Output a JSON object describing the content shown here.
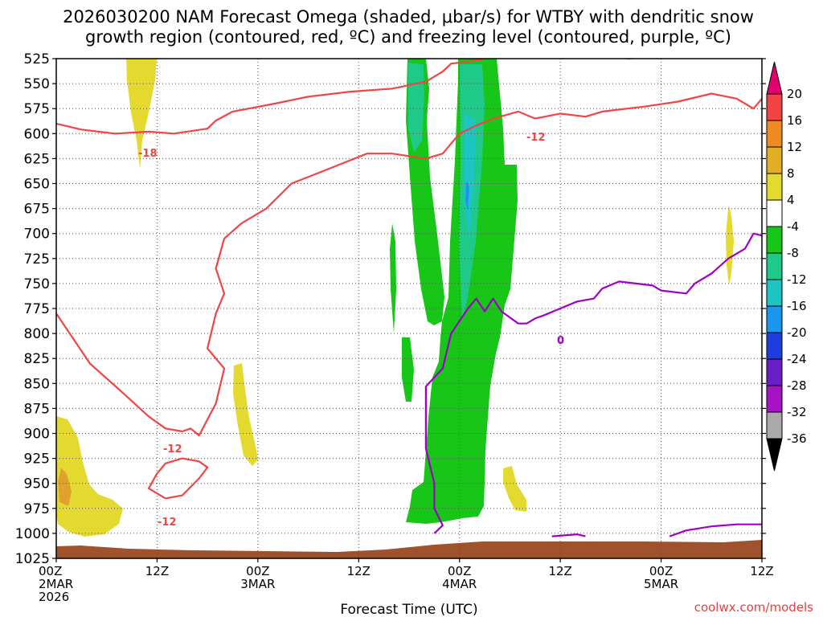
{
  "chart_data": {
    "type": "heatmap",
    "title_lines": [
      "2026030200 NAM Forecast Omega (shaded, μbar/s) for WTBY with dendritic snow",
      "growth region (contoured, red, ºC) and freezing level (contoured, purple, ºC)"
    ],
    "xlabel": "Forecast Time (UTC)",
    "watermark": "coolwx.com/models",
    "y_axis": {
      "ticks": [
        "525",
        "550",
        "575",
        "600",
        "625",
        "650",
        "675",
        "700",
        "725",
        "750",
        "775",
        "800",
        "825",
        "850",
        "875",
        "900",
        "925",
        "950",
        "975",
        "1000",
        "1025"
      ],
      "range_hpa": [
        525,
        1025
      ],
      "inverted": true,
      "grid": true
    },
    "x_axis": {
      "range_hours": [
        0,
        84
      ],
      "ticks": [
        {
          "hour": 0,
          "line1": "00Z",
          "line2": "2MAR",
          "line3": "2026"
        },
        {
          "hour": 12,
          "line1": "12Z",
          "line2": "",
          "line3": ""
        },
        {
          "hour": 24,
          "line1": "00Z",
          "line2": "3MAR",
          "line3": ""
        },
        {
          "hour": 36,
          "line1": "12Z",
          "line2": "",
          "line3": ""
        },
        {
          "hour": 48,
          "line1": "00Z",
          "line2": "4MAR",
          "line3": ""
        },
        {
          "hour": 60,
          "line1": "12Z",
          "line2": "",
          "line3": ""
        },
        {
          "hour": 72,
          "line1": "00Z",
          "line2": "5MAR",
          "line3": ""
        },
        {
          "hour": 84,
          "line1": "12Z",
          "line2": "",
          "line3": ""
        }
      ],
      "grid": true
    },
    "colorbar": {
      "labels": [
        "20",
        "16",
        "12",
        "8",
        "4",
        "-4",
        "-8",
        "-12",
        "-16",
        "-20",
        "-24",
        "-28",
        "-32",
        "-36"
      ],
      "colors": [
        "#e0006e",
        "#f24444",
        "#ef8a23",
        "#e1ae26",
        "#e4d92e",
        "#ffffff",
        "#17c617",
        "#1ec98a",
        "#1dc4c4",
        "#1a96ee",
        "#1f3ee0",
        "#6a1ec8",
        "#a612c4",
        "#aaaaaa",
        "#000000"
      ]
    },
    "shading_colors": {
      "yellow": "#e4d92e",
      "orange": "#e0a22c",
      "green": "#17c617",
      "teal": "#1ec98a",
      "cyan": "#1dc4c4",
      "blue": "#1a96ee",
      "terrain": "#a0522d"
    },
    "contour_labels": {
      "red": [
        "-18",
        "-12",
        "-12",
        "-12"
      ],
      "purple": [
        "0"
      ]
    },
    "series": [
      {
        "color": "#f24444",
        "points": [
          [
            0,
            590
          ],
          [
            3,
            596
          ],
          [
            7,
            600
          ],
          [
            11,
            598
          ],
          [
            14,
            600
          ],
          [
            18,
            595
          ],
          [
            19,
            587
          ],
          [
            21,
            578
          ],
          [
            26,
            570
          ],
          [
            30,
            563
          ],
          [
            35,
            558
          ],
          [
            40,
            555
          ],
          [
            44,
            548
          ],
          [
            46,
            538
          ],
          [
            47,
            530
          ],
          [
            49,
            528
          ],
          [
            51,
            525
          ]
        ]
      },
      {
        "color": "#f24444",
        "points": [
          [
            68,
            525
          ],
          [
            72,
            522
          ],
          [
            78,
            522
          ],
          [
            84,
            522
          ]
        ]
      },
      {
        "color": "#f24444",
        "points": [
          [
            40,
            620
          ],
          [
            44,
            625
          ],
          [
            46,
            620
          ],
          [
            48,
            600
          ],
          [
            50,
            592
          ],
          [
            52,
            585
          ],
          [
            55,
            578
          ],
          [
            57,
            585
          ],
          [
            60,
            580
          ],
          [
            63,
            583
          ],
          [
            65,
            578
          ],
          [
            70,
            573
          ],
          [
            74,
            568
          ],
          [
            78,
            560
          ],
          [
            81,
            565
          ],
          [
            83,
            575
          ],
          [
            84,
            565
          ]
        ]
      },
      {
        "color": "#f24444",
        "points": [
          [
            0,
            780
          ],
          [
            4,
            830
          ],
          [
            8,
            860
          ],
          [
            11,
            883
          ],
          [
            13,
            895
          ],
          [
            15,
            898
          ],
          [
            16,
            895
          ],
          [
            17,
            902
          ],
          [
            19,
            870
          ],
          [
            20,
            835
          ],
          [
            18,
            815
          ],
          [
            19,
            780
          ],
          [
            20,
            760
          ],
          [
            19,
            735
          ],
          [
            20,
            705
          ],
          [
            22,
            690
          ],
          [
            25,
            675
          ],
          [
            28,
            650
          ],
          [
            31,
            640
          ],
          [
            34,
            630
          ],
          [
            37,
            620
          ],
          [
            40,
            620
          ]
        ]
      },
      {
        "color": "#f24444",
        "points": [
          [
            13,
            965
          ],
          [
            11,
            955
          ],
          [
            12,
            940
          ],
          [
            13,
            930
          ],
          [
            15,
            925
          ],
          [
            17,
            928
          ],
          [
            18,
            934
          ],
          [
            17,
            945
          ],
          [
            15,
            962
          ],
          [
            13,
            965
          ]
        ]
      },
      {
        "color": "#a000c8",
        "points": [
          [
            45,
            1000
          ],
          [
            46,
            992
          ],
          [
            45,
            975
          ],
          [
            45,
            950
          ],
          [
            44,
            915
          ],
          [
            44,
            880
          ],
          [
            44,
            853
          ],
          [
            46,
            835
          ],
          [
            47,
            800
          ],
          [
            49,
            775
          ],
          [
            50,
            765
          ],
          [
            51,
            778
          ],
          [
            52,
            765
          ],
          [
            53,
            778
          ],
          [
            55,
            790
          ],
          [
            56,
            790
          ],
          [
            57,
            785
          ],
          [
            58,
            782
          ],
          [
            60,
            775
          ],
          [
            62,
            768
          ],
          [
            64,
            765
          ],
          [
            65,
            755
          ],
          [
            67,
            748
          ],
          [
            69,
            750
          ],
          [
            71,
            752
          ],
          [
            72,
            757
          ],
          [
            75,
            760
          ],
          [
            76,
            750
          ],
          [
            78,
            740
          ],
          [
            80,
            725
          ],
          [
            82,
            715
          ],
          [
            83,
            700
          ],
          [
            84,
            702
          ]
        ]
      },
      {
        "color": "#a000c8",
        "points": [
          [
            59,
            1003
          ],
          [
            62,
            1001
          ],
          [
            63,
            1003
          ]
        ]
      },
      {
        "color": "#a000c8",
        "points": [
          [
            73,
            1003
          ],
          [
            75,
            997
          ],
          [
            78,
            993
          ],
          [
            81,
            991
          ],
          [
            84,
            991
          ]
        ]
      }
    ]
  }
}
